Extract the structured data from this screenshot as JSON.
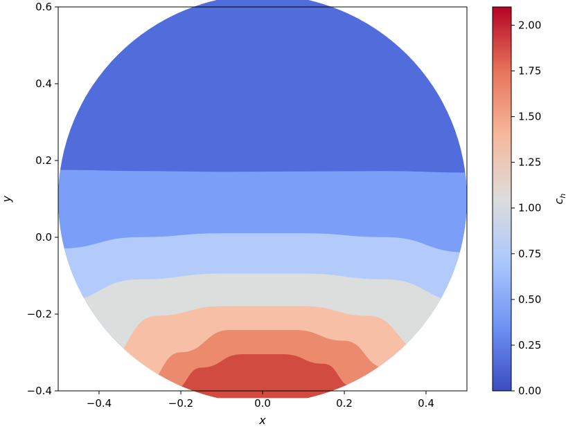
{
  "chart_data": {
    "type": "contourf",
    "xlabel": "x",
    "ylabel": "y",
    "xlim": [
      -0.5,
      0.5
    ],
    "ylim": [
      -0.4,
      0.6
    ],
    "x_ticks": [
      -0.4,
      -0.2,
      0.0,
      0.2,
      0.4
    ],
    "y_ticks": [
      -0.4,
      -0.2,
      0.0,
      0.2,
      0.4,
      0.6
    ],
    "x_tick_labels": [
      "−0.4",
      "−0.2",
      "0.0",
      "0.2",
      "0.4"
    ],
    "y_tick_labels": [
      "−0.4",
      "−0.2",
      "0.0",
      "0.2",
      "0.4",
      "0.6"
    ],
    "domain": {
      "shape": "circle",
      "center": [
        0.0,
        0.1
      ],
      "radius": 0.5
    },
    "colormap": "coolwarm",
    "colorbar": {
      "label": "c_h",
      "label_main": "c",
      "label_sub": "h",
      "range": [
        0.0,
        2.1
      ],
      "ticks": [
        0.0,
        0.25,
        0.5,
        0.75,
        1.0,
        1.25,
        1.5,
        1.75,
        2.0
      ],
      "tick_labels": [
        "0.00",
        "0.25",
        "0.50",
        "0.75",
        "1.00",
        "1.25",
        "1.50",
        "1.75",
        "2.00"
      ],
      "gradient_stops": [
        {
          "value": 0.0,
          "color": "#3b4cc0"
        },
        {
          "value": 0.35,
          "color": "#6f92f3"
        },
        {
          "value": 0.7,
          "color": "#aac7fd"
        },
        {
          "value": 1.05,
          "color": "#dddcdc"
        },
        {
          "value": 1.4,
          "color": "#f6b89c"
        },
        {
          "value": 1.75,
          "color": "#e7745b"
        },
        {
          "value": 2.1,
          "color": "#b40426"
        }
      ]
    },
    "levels": [
      {
        "range": [
          0.0,
          0.35
        ],
        "color": "#516ddb",
        "boundary": []
      },
      {
        "range": [
          0.35,
          0.7
        ],
        "color": "#7b9ff9",
        "boundary": [
          [
            -0.5,
            0.175
          ],
          [
            -0.3,
            0.172
          ],
          [
            -0.1,
            0.17
          ],
          [
            0.1,
            0.171
          ],
          [
            0.3,
            0.172
          ],
          [
            0.5,
            0.168
          ]
        ]
      },
      {
        "range": [
          0.7,
          1.05
        ],
        "color": "#b2cbfb",
        "boundary": [
          [
            -0.5,
            -0.03
          ],
          [
            -0.3,
            -0.0
          ],
          [
            -0.1,
            0.01
          ],
          [
            0.1,
            0.01
          ],
          [
            0.3,
            0.0
          ],
          [
            0.5,
            -0.04
          ]
        ]
      },
      {
        "range": [
          1.05,
          1.4
        ],
        "color": "#dcdddd",
        "boundary": [
          [
            -0.5,
            -0.17
          ],
          [
            -0.3,
            -0.11
          ],
          [
            -0.1,
            -0.095
          ],
          [
            0.1,
            -0.095
          ],
          [
            0.3,
            -0.11
          ],
          [
            0.5,
            -0.17
          ]
        ]
      },
      {
        "range": [
          1.4,
          1.75
        ],
        "color": "#f6bfa6",
        "boundary": [
          [
            -0.4,
            -0.34
          ],
          [
            -0.26,
            -0.205
          ],
          [
            -0.1,
            -0.18
          ],
          [
            0.1,
            -0.18
          ],
          [
            0.26,
            -0.205
          ],
          [
            0.4,
            -0.3
          ]
        ]
      },
      {
        "range": [
          1.75,
          2.1
        ],
        "color": "#ec8a6d",
        "boundary": [
          [
            -0.3,
            -0.4
          ],
          [
            -0.2,
            -0.3
          ],
          [
            -0.08,
            -0.242
          ],
          [
            0.08,
            -0.242
          ],
          [
            0.2,
            -0.27
          ],
          [
            0.3,
            -0.34
          ]
        ]
      },
      {
        "range": [
          2.1,
          2.45
        ],
        "color": "#d24b40",
        "boundary": [
          [
            -0.22,
            -0.4
          ],
          [
            -0.15,
            -0.34
          ],
          [
            -0.05,
            -0.305
          ],
          [
            0.05,
            -0.305
          ],
          [
            0.15,
            -0.33
          ],
          [
            0.22,
            -0.39
          ]
        ]
      }
    ]
  }
}
